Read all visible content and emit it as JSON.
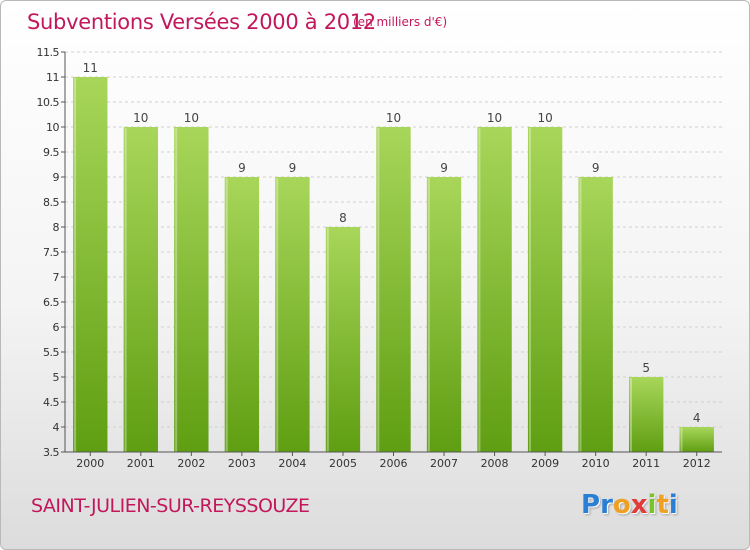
{
  "header": {
    "title": "Subventions Versées 2000 à 2012",
    "subtitle": "(en milliers d'€)"
  },
  "footer": {
    "commune": "SAINT-JULIEN-SUR-REYSSOUZE",
    "logo_letters": [
      "P",
      "r",
      "o",
      "x",
      "i",
      "t",
      "i"
    ],
    "logo_colors": [
      "#2a7fd4",
      "#2a7fd4",
      "#f0a020",
      "#e03a3a",
      "#7cc22e",
      "#f0a020",
      "#2a7fd4"
    ]
  },
  "colors": {
    "bar_light": "#a8d65a",
    "bar_dark": "#5f9e12",
    "text": "#c2185b",
    "axis": "#555555"
  },
  "chart_data": {
    "type": "bar",
    "categories": [
      "2000",
      "2001",
      "2002",
      "2003",
      "2004",
      "2005",
      "2006",
      "2007",
      "2008",
      "2009",
      "2010",
      "2011",
      "2012"
    ],
    "values": [
      11,
      10,
      10,
      9,
      9,
      8,
      10,
      9,
      10,
      10,
      9,
      5,
      4
    ],
    "data_labels": [
      "11",
      "10",
      "10",
      "9",
      "9",
      "8",
      "10",
      "9",
      "10",
      "10",
      "9",
      "5",
      "4"
    ],
    "ylim": [
      3.5,
      11.5
    ],
    "yticks": [
      3.5,
      4,
      4.5,
      5,
      5.5,
      6,
      6.5,
      7,
      7.5,
      8,
      8.5,
      9,
      9.5,
      10,
      10.5,
      11,
      11.5
    ],
    "ytick_labels": [
      "3.5",
      "4",
      "4.5",
      "5",
      "5.5",
      "6",
      "6.5",
      "7",
      "7.5",
      "8",
      "8.5",
      "9",
      "9.5",
      "10",
      "10.5",
      "11",
      "11.5"
    ],
    "grid": true,
    "legend": "none"
  }
}
